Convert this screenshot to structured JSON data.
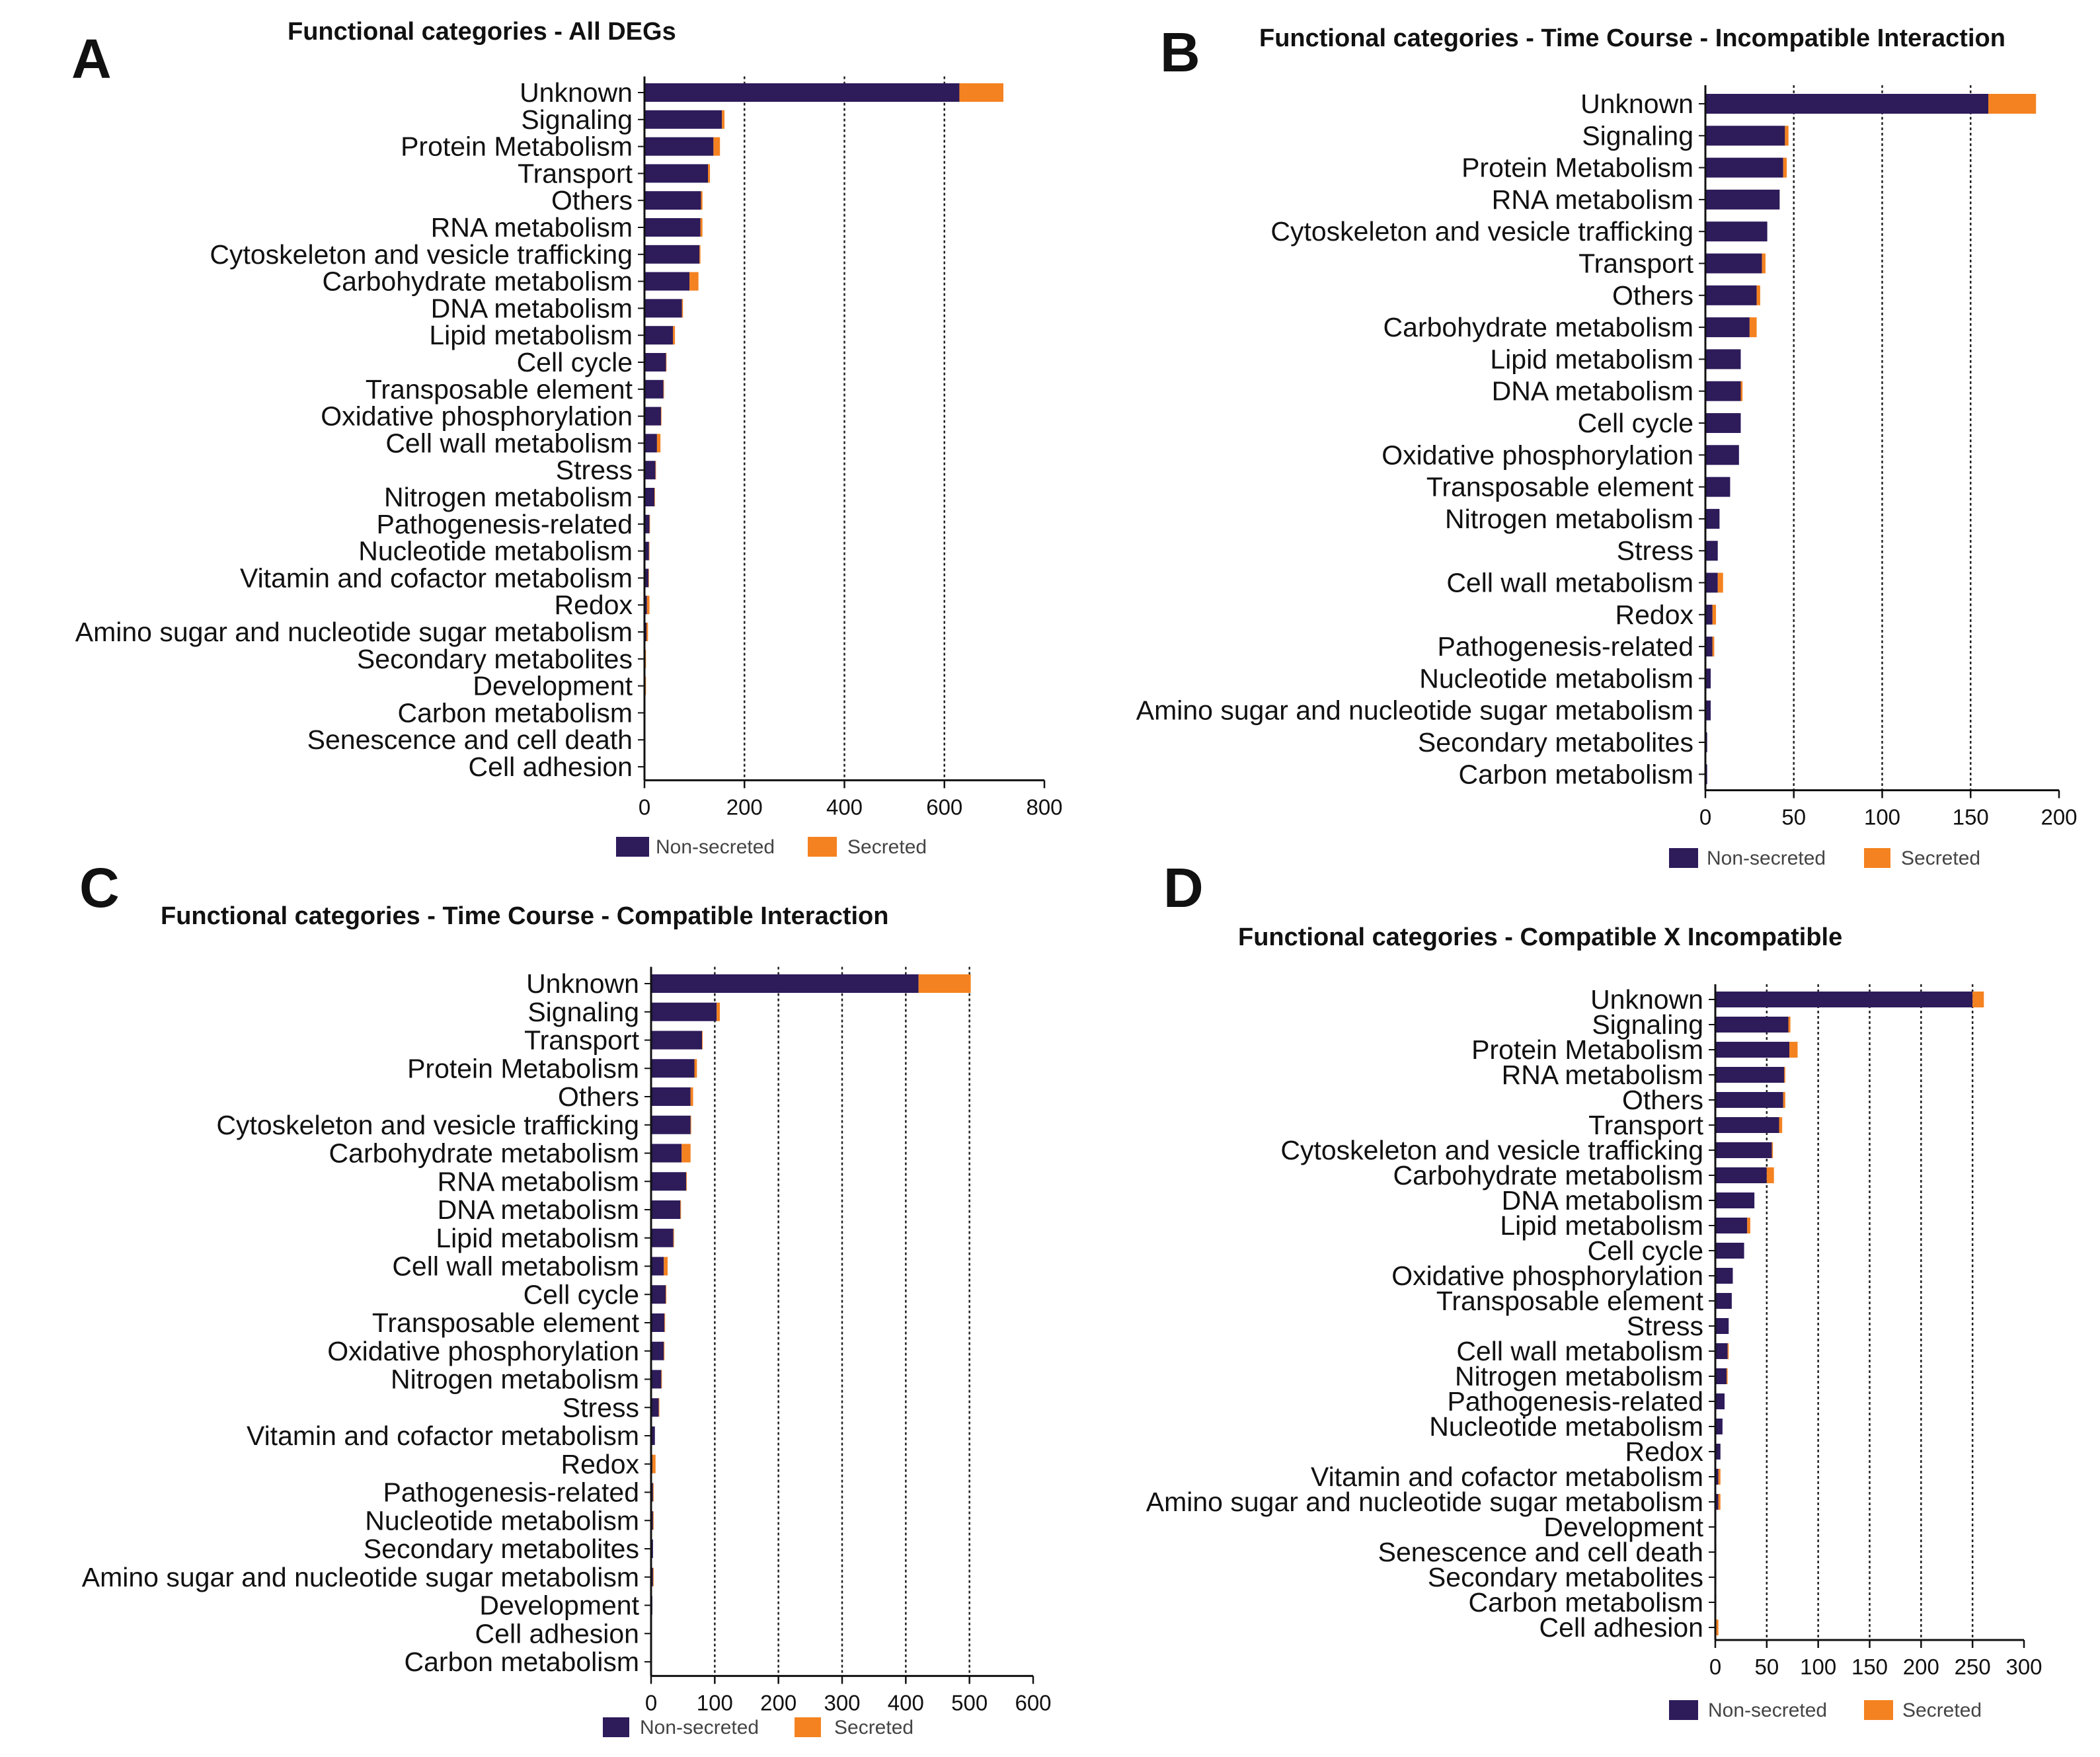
{
  "colors": {
    "non_secreted": "#2d1b5a",
    "secreted": "#f48220",
    "axis": "#111111",
    "gridline": "#222222"
  },
  "legend": {
    "non_secreted": "Non-secreted",
    "secreted": "Secreted"
  },
  "chart_data": [
    {
      "panel": "A",
      "type": "bar",
      "orientation": "horizontal",
      "stacked": true,
      "title": "Functional categories - All DEGs",
      "xlim": [
        0,
        800
      ],
      "xticks": [
        0,
        200,
        400,
        600,
        800
      ],
      "gridlines": [
        200,
        400,
        600
      ],
      "categories": [
        "Unknown",
        "Signaling",
        "Protein Metabolism",
        "Transport",
        "Others",
        "RNA metabolism",
        "Cytoskeleton and vesicle trafficking",
        "Carbohydrate metabolism",
        "DNA metabolism",
        "Lipid metabolism",
        "Cell cycle",
        "Transposable element",
        "Oxidative phosphorylation",
        "Cell wall metabolism",
        "Stress",
        "Nitrogen metabolism",
        "Pathogenesis-related",
        "Nucleotide metabolism",
        "Vitamin and cofactor metabolism",
        "Redox",
        "Amino sugar and nucleotide sugar metabolism",
        "Secondary metabolites",
        "Development",
        "Carbon metabolism",
        "Senescence and cell death",
        "Cell adhesion"
      ],
      "series": [
        {
          "name": "Non-secreted",
          "values": [
            630,
            155,
            138,
            127,
            113,
            112,
            110,
            90,
            75,
            57,
            43,
            38,
            33,
            25,
            22,
            20,
            10,
            9,
            8,
            5,
            4,
            2,
            2,
            1,
            1,
            1
          ]
        },
        {
          "name": "Secreted",
          "values": [
            88,
            5,
            13,
            4,
            3,
            4,
            2,
            18,
            2,
            4,
            1,
            1,
            1,
            7,
            1,
            1,
            1,
            1,
            1,
            5,
            3,
            1,
            1,
            0,
            0,
            0
          ]
        }
      ]
    },
    {
      "panel": "B",
      "type": "bar",
      "orientation": "horizontal",
      "stacked": true,
      "title": "Functional categories - Time Course - Incompatible Interaction",
      "xlim": [
        0,
        200
      ],
      "xticks": [
        0,
        50,
        100,
        150,
        200
      ],
      "gridlines": [
        50,
        100,
        150
      ],
      "categories": [
        "Unknown",
        "Signaling",
        "Protein Metabolism",
        "RNA metabolism",
        "Cytoskeleton and vesicle trafficking",
        "Transport",
        "Others",
        "Carbohydrate metabolism",
        "Lipid metabolism",
        "DNA metabolism",
        "Cell cycle",
        "Oxidative phosphorylation",
        "Transposable element",
        "Nitrogen metabolism",
        "Stress",
        "Cell wall metabolism",
        "Redox",
        "Pathogenesis-related",
        "Nucleotide metabolism",
        "Amino sugar and nucleotide sugar metabolism",
        "Secondary metabolites",
        "Carbon metabolism"
      ],
      "series": [
        {
          "name": "Non-secreted",
          "values": [
            160,
            45,
            44,
            42,
            35,
            32,
            29,
            25,
            20,
            20,
            20,
            19,
            14,
            8,
            7,
            7,
            4,
            4,
            3,
            3,
            1,
            1
          ]
        },
        {
          "name": "Secreted",
          "values": [
            27,
            2,
            2,
            0,
            0,
            2,
            2,
            4,
            0,
            1,
            0,
            0,
            0,
            0,
            0,
            3,
            2,
            1,
            0,
            0,
            0,
            0
          ]
        }
      ]
    },
    {
      "panel": "C",
      "type": "bar",
      "orientation": "horizontal",
      "stacked": true,
      "title": "Functional categories - Time Course - Compatible Interaction",
      "xlim": [
        0,
        600
      ],
      "xticks": [
        0,
        100,
        200,
        300,
        400,
        500,
        600
      ],
      "gridlines": [
        100,
        200,
        300,
        400,
        500
      ],
      "categories": [
        "Unknown",
        "Signaling",
        "Transport",
        "Protein Metabolism",
        "Others",
        "Cytoskeleton and vesicle trafficking",
        "Carbohydrate metabolism",
        "RNA metabolism",
        "DNA metabolism",
        "Lipid metabolism",
        "Cell wall metabolism",
        "Cell cycle",
        "Transposable element",
        "Oxidative phosphorylation",
        "Nitrogen metabolism",
        "Stress",
        "Vitamin and cofactor metabolism",
        "Redox",
        "Pathogenesis-related",
        "Nucleotide metabolism",
        "Secondary metabolites",
        "Amino sugar and nucleotide sugar metabolism",
        "Development",
        "Cell adhesion",
        "Carbon metabolism"
      ],
      "series": [
        {
          "name": "Non-secreted",
          "values": [
            420,
            103,
            80,
            68,
            62,
            62,
            48,
            55,
            46,
            35,
            20,
            23,
            21,
            20,
            16,
            12,
            6,
            2,
            3,
            3,
            3,
            3,
            2,
            1,
            1
          ]
        },
        {
          "name": "Secreted",
          "values": [
            82,
            5,
            1,
            4,
            4,
            1,
            14,
            1,
            1,
            1,
            6,
            1,
            1,
            1,
            1,
            1,
            0,
            5,
            1,
            1,
            0,
            1,
            0,
            0,
            0
          ]
        }
      ]
    },
    {
      "panel": "D",
      "type": "bar",
      "orientation": "horizontal",
      "stacked": true,
      "title": "Functional categories - Compatible X Incompatible",
      "xlim": [
        0,
        300
      ],
      "xticks": [
        0,
        50,
        100,
        150,
        200,
        250,
        300
      ],
      "gridlines": [
        50,
        100,
        150,
        200,
        250
      ],
      "categories": [
        "Unknown",
        "Signaling",
        "Protein Metabolism",
        "RNA metabolism",
        "Others",
        "Transport",
        "Cytoskeleton and vesicle trafficking",
        "Carbohydrate metabolism",
        "DNA metabolism",
        "Lipid metabolism",
        "Cell cycle",
        "Oxidative phosphorylation",
        "Transposable element",
        "Stress",
        "Cell wall metabolism",
        "Nitrogen metabolism",
        "Pathogenesis-related",
        "Nucleotide metabolism",
        "Redox",
        "Vitamin and cofactor metabolism",
        "Amino sugar and nucleotide sugar metabolism",
        "Development",
        "Senescence and cell death",
        "Secondary metabolites",
        "Carbon metabolism",
        "Cell adhesion"
      ],
      "series": [
        {
          "name": "Non-secreted",
          "values": [
            250,
            71,
            72,
            67,
            66,
            62,
            55,
            50,
            38,
            31,
            28,
            17,
            16,
            13,
            12,
            11,
            9,
            7,
            5,
            3,
            3,
            1,
            1,
            1,
            1,
            1
          ]
        },
        {
          "name": "Secreted",
          "values": [
            11,
            2,
            8,
            1,
            2,
            3,
            1,
            7,
            0,
            3,
            0,
            0,
            0,
            0,
            1,
            1,
            0,
            0,
            0,
            2,
            2,
            0,
            0,
            0,
            0,
            2
          ]
        }
      ]
    }
  ]
}
